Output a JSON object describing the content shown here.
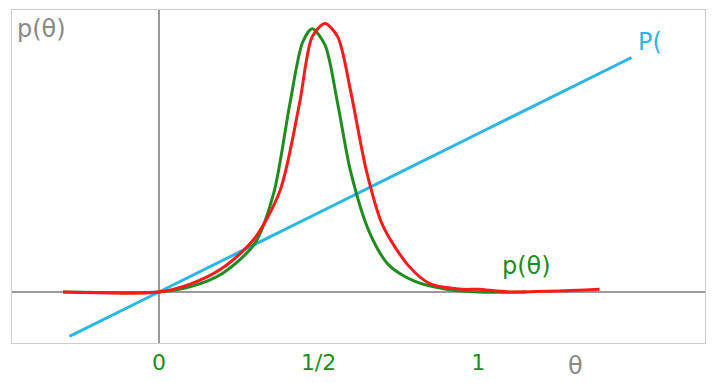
{
  "chart_data": {
    "type": "line",
    "x_label": "θ",
    "y_label": "p(θ)",
    "xlim": [
      -0.46,
      1.71
    ],
    "ylim": [
      -0.19,
      1.05
    ],
    "xticks": [
      0,
      {
        "value": 0.5,
        "label": "1/2"
      },
      1
    ],
    "yticks": [],
    "tick_labels": "x",
    "grid": false,
    "series": [
      {
        "color": "#29b6e8",
        "name": "P(",
        "x": [
          -0.28,
          0,
          0.5,
          1,
          1.48
        ],
        "values": [
          -0.165,
          0,
          0.295,
          0.59,
          0.873
        ]
      },
      {
        "color": "#1e8c1e",
        "name": "p(θ)",
        "x": [
          -0.3,
          0,
          0.1,
          0.2,
          0.3,
          0.36,
          0.41,
          0.45,
          0.48,
          0.52,
          0.56,
          0.6,
          0.66,
          0.72,
          0.8,
          0.9,
          1.0,
          1.15
        ],
        "values": [
          0,
          0,
          0.02,
          0.07,
          0.18,
          0.37,
          0.7,
          0.93,
          0.98,
          0.92,
          0.7,
          0.45,
          0.22,
          0.1,
          0.04,
          0.01,
          0,
          0
        ]
      },
      {
        "color": "#ff1a1a",
        "x": [
          -0.3,
          0,
          0.1,
          0.2,
          0.3,
          0.38,
          0.44,
          0.48,
          0.52,
          0.56,
          0.6,
          0.65,
          0.7,
          0.78,
          0.85,
          0.95,
          1.0,
          1.1,
          1.38
        ],
        "values": [
          0,
          0,
          0.03,
          0.09,
          0.2,
          0.38,
          0.7,
          0.95,
          1.0,
          0.95,
          0.75,
          0.45,
          0.25,
          0.1,
          0.03,
          0.01,
          0.01,
          0,
          0.01
        ]
      }
    ]
  }
}
